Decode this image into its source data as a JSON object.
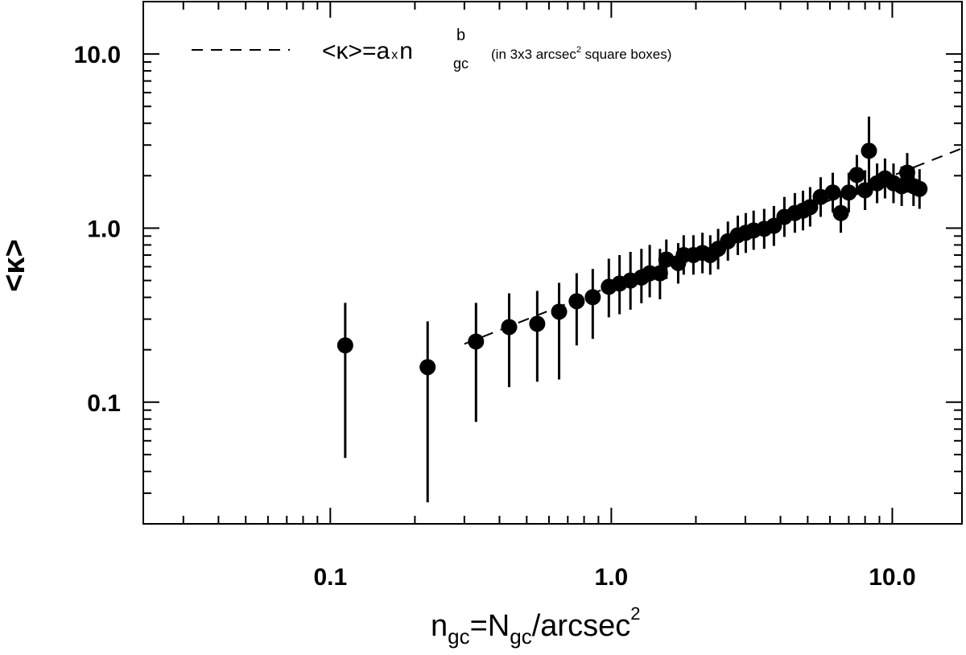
{
  "chart_data": {
    "type": "scatter",
    "x_scale": "log",
    "y_scale": "log",
    "xlim": [
      0.0216,
      17.7
    ],
    "ylim": [
      0.02,
      20
    ],
    "xticks": [
      0.1,
      {
        "value": 1,
        "label": "1.0"
      },
      {
        "value": 10,
        "label": "10.0"
      }
    ],
    "yticks": [
      0.1,
      {
        "value": 1,
        "label": "1.0"
      },
      {
        "value": 10,
        "label": "10.0"
      }
    ],
    "xminor": [
      0.03,
      0.04,
      0.05,
      0.06,
      0.07,
      0.08,
      0.09,
      0.2,
      0.3,
      0.4,
      0.5,
      0.6,
      0.7,
      0.8,
      0.9,
      2,
      3,
      4,
      5,
      6,
      7,
      8,
      9
    ],
    "yminor": [
      0.03,
      0.04,
      0.05,
      0.06,
      0.07,
      0.08,
      0.09,
      0.2,
      0.3,
      0.4,
      0.5,
      0.6,
      0.7,
      0.8,
      0.9,
      2,
      3,
      4,
      5,
      6,
      7,
      8,
      9
    ],
    "x_label_parts": [
      "n",
      "gc",
      "=N",
      "gc",
      "/arcsec",
      "2"
    ],
    "y_label": "<κ>",
    "series": [
      {
        "color": "#000000",
        "x": [
          0.113,
          0.222,
          0.33,
          0.433,
          0.545,
          0.652,
          0.753,
          0.859,
          0.98,
          1.07,
          1.17,
          1.28,
          1.37,
          1.49,
          1.57,
          1.73,
          1.81,
          1.96,
          2.11,
          2.25,
          2.4,
          2.6,
          2.82,
          3.01,
          3.21,
          3.5,
          3.79,
          4.13,
          4.5,
          4.81,
          5.1,
          5.56,
          6.14,
          6.56,
          7.0,
          7.48,
          8.0,
          8.26,
          8.83,
          9.42,
          10.1,
          10.8,
          11.3,
          11.9,
          12.5
        ],
        "values": [
          0.212,
          0.159,
          0.223,
          0.27,
          0.282,
          0.331,
          0.38,
          0.401,
          0.46,
          0.48,
          0.5,
          0.52,
          0.55,
          0.55,
          0.66,
          0.63,
          0.7,
          0.7,
          0.72,
          0.7,
          0.76,
          0.84,
          0.91,
          0.94,
          0.97,
          0.99,
          1.03,
          1.16,
          1.22,
          1.26,
          1.32,
          1.51,
          1.6,
          1.22,
          1.6,
          2.02,
          1.65,
          2.78,
          1.81,
          1.93,
          1.81,
          1.74,
          2.08,
          1.74,
          1.68
        ],
        "y_low": [
          0.0478,
          0.0266,
          0.077,
          0.122,
          0.131,
          0.135,
          0.212,
          0.231,
          0.307,
          0.32,
          0.34,
          0.37,
          0.4,
          0.39,
          0.51,
          0.48,
          0.54,
          0.54,
          0.55,
          0.54,
          0.58,
          0.65,
          0.7,
          0.72,
          0.75,
          0.76,
          0.79,
          0.89,
          0.94,
          0.97,
          1.02,
          1.16,
          1.23,
          0.94,
          1.23,
          1.55,
          1.27,
          1.69,
          1.39,
          1.48,
          1.39,
          1.34,
          1.6,
          1.34,
          1.29
        ],
        "y_high": [
          0.372,
          0.291,
          0.372,
          0.422,
          0.436,
          0.485,
          0.551,
          0.582,
          0.667,
          0.7,
          0.73,
          0.76,
          0.8,
          0.76,
          0.86,
          0.82,
          0.91,
          0.91,
          0.94,
          0.91,
          0.99,
          1.09,
          1.18,
          1.22,
          1.26,
          1.29,
          1.34,
          1.51,
          1.59,
          1.64,
          1.72,
          1.96,
          2.08,
          1.59,
          2.08,
          2.63,
          2.15,
          4.37,
          2.35,
          2.51,
          2.35,
          2.26,
          2.7,
          2.26,
          2.18
        ]
      }
    ],
    "fit": {
      "x": [
        0.3,
        17.7
      ],
      "y": [
        0.216,
        2.87
      ],
      "line_style": "dashed",
      "color": "#000000"
    },
    "legend": {
      "label_parts": [
        "<κ>=a",
        "x",
        "n",
        "gc",
        "b"
      ],
      "note_parts": [
        "(in 3x3 arcsec",
        "2",
        " square boxes)"
      ]
    }
  }
}
